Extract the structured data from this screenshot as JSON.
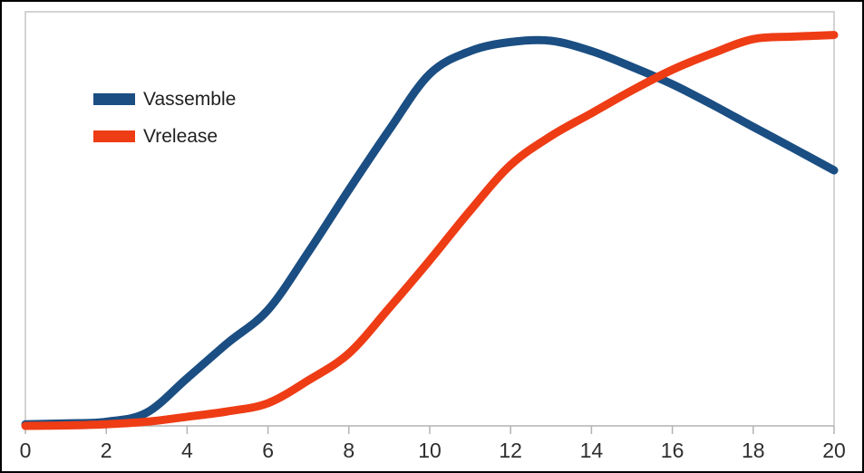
{
  "window": {
    "background": "#ffffff",
    "border_color": "#000000"
  },
  "legend": {
    "position": "top-left",
    "items": [
      {
        "label": "Vassemble",
        "color": "#1b4e82"
      },
      {
        "label": "Vrelease",
        "color": "#ee3c15"
      }
    ]
  },
  "chart_data": {
    "type": "line",
    "title": "",
    "xlabel": "",
    "ylabel": "",
    "grid": false,
    "legend_position": "top-left",
    "xlim": [
      0,
      20
    ],
    "ylim": [
      0,
      1
    ],
    "x_ticks": [
      0,
      2,
      4,
      6,
      8,
      10,
      12,
      14,
      16,
      18,
      20
    ],
    "x_tick_labels": [
      "0",
      "2",
      "4",
      "6",
      "8",
      "10",
      "12",
      "14",
      "16",
      "18",
      "20"
    ],
    "y_axis_shown": false,
    "value_units": "relative amplitude (no y-axis labels shown; values normalized 0-1 of plot height)",
    "x": [
      0,
      1,
      2,
      3,
      4,
      5,
      6,
      7,
      8,
      9,
      10,
      11,
      12,
      13,
      14,
      15,
      16,
      17,
      18,
      19,
      20
    ],
    "series": [
      {
        "name": "Vassemble",
        "color": "#1b4e82",
        "line_width": 9,
        "values": [
          0.004,
          0.006,
          0.01,
          0.032,
          0.115,
          0.2,
          0.28,
          0.42,
          0.57,
          0.715,
          0.85,
          0.905,
          0.927,
          0.93,
          0.905,
          0.867,
          0.825,
          0.775,
          0.722,
          0.67,
          0.617
        ]
      },
      {
        "name": "Vrelease",
        "color": "#ee3c15",
        "line_width": 9,
        "values": [
          0.0,
          0.001,
          0.004,
          0.01,
          0.022,
          0.035,
          0.055,
          0.11,
          0.175,
          0.285,
          0.4,
          0.52,
          0.63,
          0.7,
          0.755,
          0.81,
          0.86,
          0.9,
          0.934,
          0.94,
          0.944
        ]
      }
    ],
    "annotations": {
      "vassemble_peak": {
        "x": 12.7,
        "value": 0.93
      },
      "crossover": {
        "x": 15.5,
        "value": 0.84
      }
    }
  },
  "frame": {
    "frame_color": "#c6c6c6",
    "axis_color": "#b3b3b3",
    "tick_color": "#b3b3b3",
    "tick_label_color": "#2e2e2e"
  }
}
